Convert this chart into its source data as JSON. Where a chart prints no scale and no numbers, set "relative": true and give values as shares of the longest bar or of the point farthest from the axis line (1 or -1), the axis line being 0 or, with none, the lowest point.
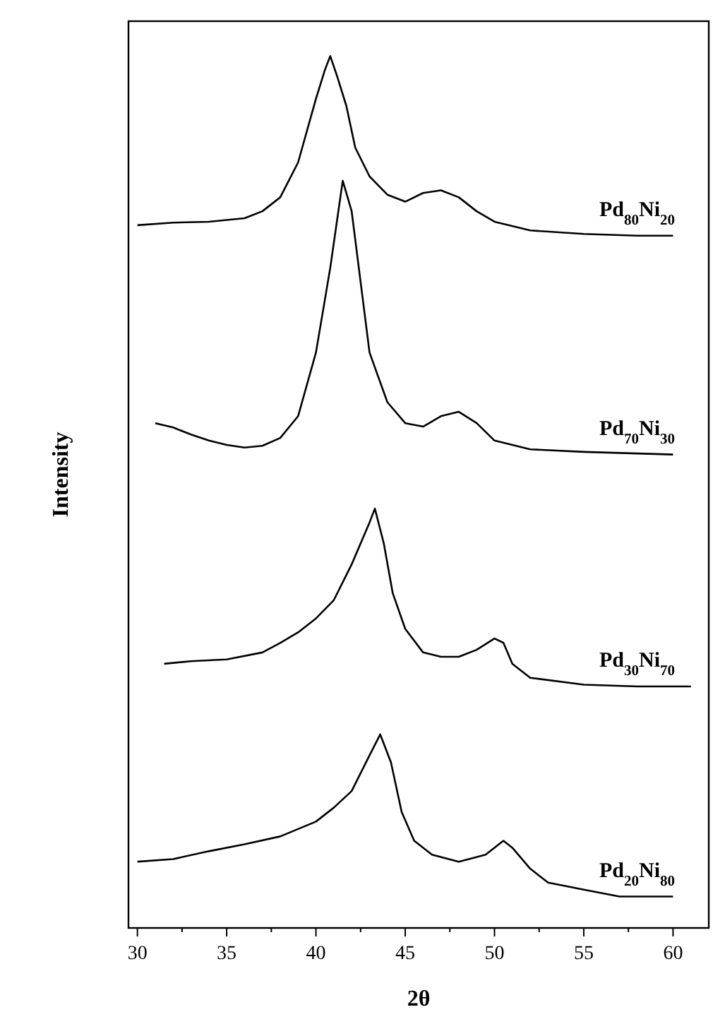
{
  "chart_data": {
    "type": "line",
    "relative": true,
    "xlabel": "2θ",
    "ylabel": "Intensity",
    "xlim": [
      29.5,
      62
    ],
    "xticks": [
      30,
      35,
      40,
      45,
      50,
      55,
      60
    ],
    "series": [
      {
        "name": "Pd$_{80}$Ni$_{20}$",
        "color": "#000000",
        "x": [
          30,
          32,
          34,
          35,
          36,
          37,
          38,
          39,
          40,
          40.5,
          40.8,
          41.2,
          41.7,
          42.2,
          43,
          44,
          45,
          46,
          47,
          48,
          49,
          50,
          52,
          55,
          58,
          60
        ],
        "values": [
          0.806,
          0.809,
          0.81,
          0.812,
          0.814,
          0.822,
          0.838,
          0.878,
          0.951,
          0.984,
          1,
          0.976,
          0.943,
          0.895,
          0.862,
          0.841,
          0.833,
          0.843,
          0.846,
          0.838,
          0.822,
          0.81,
          0.8,
          0.796,
          0.794,
          0.794
        ]
      },
      {
        "name": "Pd$_{70}$Ni$_{30}$",
        "color": "#000000",
        "x": [
          31,
          32,
          33,
          34,
          35,
          36,
          37,
          38,
          39,
          40,
          40.8,
          41.5,
          42,
          42.5,
          43,
          44,
          45,
          46,
          47,
          48,
          49,
          50,
          52,
          55,
          60
        ],
        "values": [
          0.579,
          0.574,
          0.566,
          0.559,
          0.554,
          0.551,
          0.553,
          0.562,
          0.587,
          0.66,
          0.757,
          0.857,
          0.822,
          0.741,
          0.66,
          0.603,
          0.579,
          0.575,
          0.587,
          0.592,
          0.579,
          0.559,
          0.549,
          0.546,
          0.543
        ]
      },
      {
        "name": "Pd$_{30}$Ni$_{70}$",
        "color": "#000000",
        "x": [
          31.5,
          33,
          35,
          37,
          38,
          39,
          40,
          41,
          42,
          43,
          43.3,
          43.8,
          44.3,
          45,
          46,
          47,
          48,
          49,
          50,
          50.5,
          51,
          52,
          55,
          58,
          61
        ],
        "values": [
          0.303,
          0.306,
          0.308,
          0.316,
          0.327,
          0.339,
          0.355,
          0.376,
          0.417,
          0.465,
          0.481,
          0.441,
          0.384,
          0.343,
          0.316,
          0.311,
          0.311,
          0.319,
          0.332,
          0.327,
          0.303,
          0.287,
          0.279,
          0.277,
          0.277
        ]
      },
      {
        "name": "Pd$_{20}$Ni$_{80}$",
        "color": "#000000",
        "x": [
          30,
          32,
          34,
          36,
          38,
          40,
          41,
          42,
          43,
          43.6,
          44.2,
          44.8,
          45.5,
          46.5,
          48,
          49.5,
          50.5,
          51,
          52,
          53,
          55,
          57,
          60
        ],
        "values": [
          0.076,
          0.079,
          0.088,
          0.096,
          0.105,
          0.122,
          0.138,
          0.157,
          0.198,
          0.222,
          0.19,
          0.133,
          0.1,
          0.084,
          0.076,
          0.084,
          0.1,
          0.092,
          0.068,
          0.052,
          0.044,
          0.036,
          0.036
        ]
      }
    ]
  }
}
